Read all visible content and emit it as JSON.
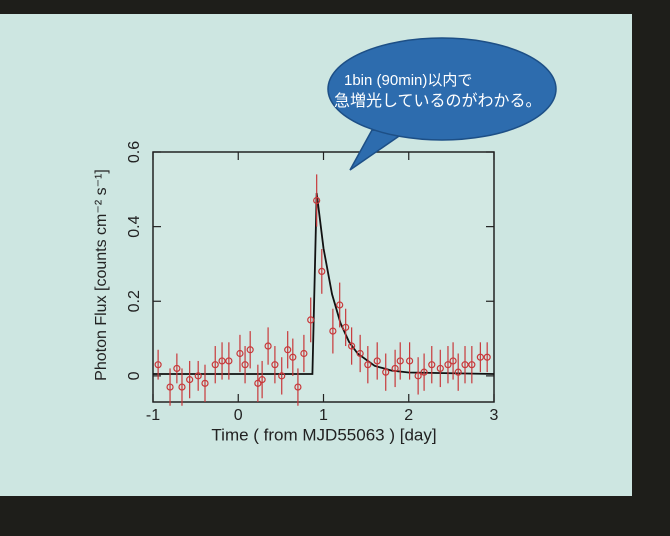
{
  "chart_data": {
    "type": "scatter",
    "annotation": [
      "1bin (90min)以内で",
      "急増光しているのがわかる。"
    ],
    "xlabel": "Time ( from MJD55063 ) [day]",
    "ylabel": "Photon Flux [counts cm⁻² s⁻¹]",
    "xlim": [
      -1,
      3
    ],
    "ylim": [
      -0.07,
      0.6
    ],
    "xticks": [
      -1,
      0,
      1,
      2,
      3
    ],
    "yticks": [
      0,
      0.2,
      0.4,
      0.6
    ],
    "points": {
      "color": "#c8383a",
      "x": [
        -0.94,
        -0.8,
        -0.72,
        -0.66,
        -0.57,
        -0.47,
        -0.39,
        -0.27,
        -0.19,
        -0.11,
        0.02,
        0.08,
        0.14,
        0.23,
        0.28,
        0.35,
        0.43,
        0.51,
        0.58,
        0.64,
        0.7,
        0.77,
        0.85,
        0.92,
        0.98,
        1.11,
        1.19,
        1.26,
        1.33,
        1.43,
        1.52,
        1.63,
        1.73,
        1.84,
        1.9,
        2.01,
        2.11,
        2.18,
        2.27,
        2.37,
        2.46,
        2.52,
        2.58,
        2.66,
        2.74,
        2.84,
        2.92
      ],
      "values": [
        0.03,
        -0.03,
        0.02,
        -0.03,
        -0.01,
        0,
        -0.02,
        0.03,
        0.04,
        0.04,
        0.06,
        0.03,
        0.07,
        -0.02,
        -0.01,
        0.08,
        0.03,
        0,
        0.07,
        0.05,
        -0.03,
        0.06,
        0.15,
        0.47,
        0.28,
        0.12,
        0.19,
        0.13,
        0.08,
        0.06,
        0.03,
        0.04,
        0.01,
        0.02,
        0.04,
        0.04,
        0,
        0.01,
        0.03,
        0.02,
        0.03,
        0.04,
        0.01,
        0.03,
        0.03,
        0.05,
        0.05
      ],
      "errors": [
        0.04,
        0.05,
        0.04,
        0.05,
        0.05,
        0.04,
        0.05,
        0.05,
        0.05,
        0.05,
        0.05,
        0.05,
        0.05,
        0.05,
        0.05,
        0.05,
        0.05,
        0.05,
        0.05,
        0.05,
        0.05,
        0.05,
        0.06,
        0.07,
        0.06,
        0.06,
        0.06,
        0.05,
        0.05,
        0.05,
        0.05,
        0.05,
        0.05,
        0.05,
        0.05,
        0.05,
        0.05,
        0.05,
        0.05,
        0.05,
        0.05,
        0.05,
        0.05,
        0.05,
        0.05,
        0.04,
        0.04
      ]
    },
    "fit": {
      "color": "#111111",
      "x": [
        -1,
        0.87,
        0.92,
        1.0,
        1.1,
        1.2,
        1.3,
        1.4,
        1.6,
        1.8,
        2.0,
        3.0
      ],
      "values": [
        0.005,
        0.005,
        0.49,
        0.342,
        0.219,
        0.141,
        0.091,
        0.06,
        0.027,
        0.014,
        0.009,
        0.005
      ]
    }
  }
}
